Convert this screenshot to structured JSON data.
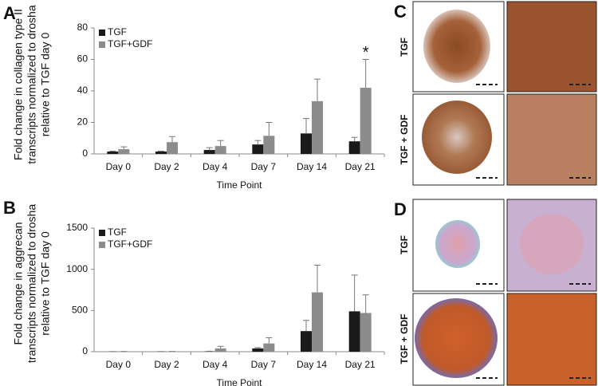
{
  "chart_data": [
    {
      "type": "bar",
      "panel": "A",
      "ylabel": [
        "Fold change in collagen type II",
        "transcripts normalized to drosha",
        "relative to TGF day 0"
      ],
      "xlabel": "Time Point",
      "categories": [
        "Day 0",
        "Day 2",
        "Day 4",
        "Day 7",
        "Day 14",
        "Day 21"
      ],
      "series": [
        {
          "name": "TGF",
          "color": "#1a1a1a",
          "values": [
            1.5,
            1.5,
            2.5,
            6,
            13,
            8
          ],
          "errors": [
            0.3,
            0.3,
            1.5,
            2.5,
            9.5,
            2.5
          ]
        },
        {
          "name": "TGF+GDF",
          "color": "#8c8c8c",
          "values": [
            3,
            7.5,
            5,
            11.5,
            33.5,
            42
          ],
          "errors": [
            1.5,
            3.5,
            3.5,
            8.5,
            14,
            18
          ]
        }
      ],
      "errorbar_color": "#777777",
      "ylim": [
        0,
        80
      ],
      "yticks": [
        0,
        20,
        40,
        60,
        80
      ],
      "legend": "upper left",
      "annotations": [
        {
          "text": "*",
          "x": "Day 21"
        }
      ]
    },
    {
      "type": "bar",
      "panel": "B",
      "ylabel": [
        "Fold change in aggrecan",
        "transcripts normalized to drosha",
        "relative to TGF day 0"
      ],
      "xlabel": "Time Point",
      "categories": [
        "Day 0",
        "Day 2",
        "Day 4",
        "Day 7",
        "Day 14",
        "Day 21"
      ],
      "series": [
        {
          "name": "TGF",
          "color": "#1a1a1a",
          "values": [
            1,
            1,
            3,
            40,
            250,
            490
          ],
          "errors": [
            1,
            1,
            3,
            10,
            130,
            440
          ]
        },
        {
          "name": "TGF+GDF",
          "color": "#8c8c8c",
          "values": [
            2,
            2,
            40,
            100,
            720,
            470
          ],
          "errors": [
            1,
            1,
            25,
            70,
            330,
            220
          ]
        }
      ],
      "errorbar_color": "#777777",
      "ylim": [
        0,
        1500
      ],
      "yticks": [
        0,
        500,
        1000,
        1500
      ],
      "legend": "upper left",
      "annotations": []
    }
  ],
  "panels": [
    {
      "label": "C",
      "rows": [
        "TGF",
        "TGF + GDF"
      ]
    },
    {
      "label": "D",
      "rows": [
        "TGF",
        "TGF + GDF"
      ]
    }
  ]
}
